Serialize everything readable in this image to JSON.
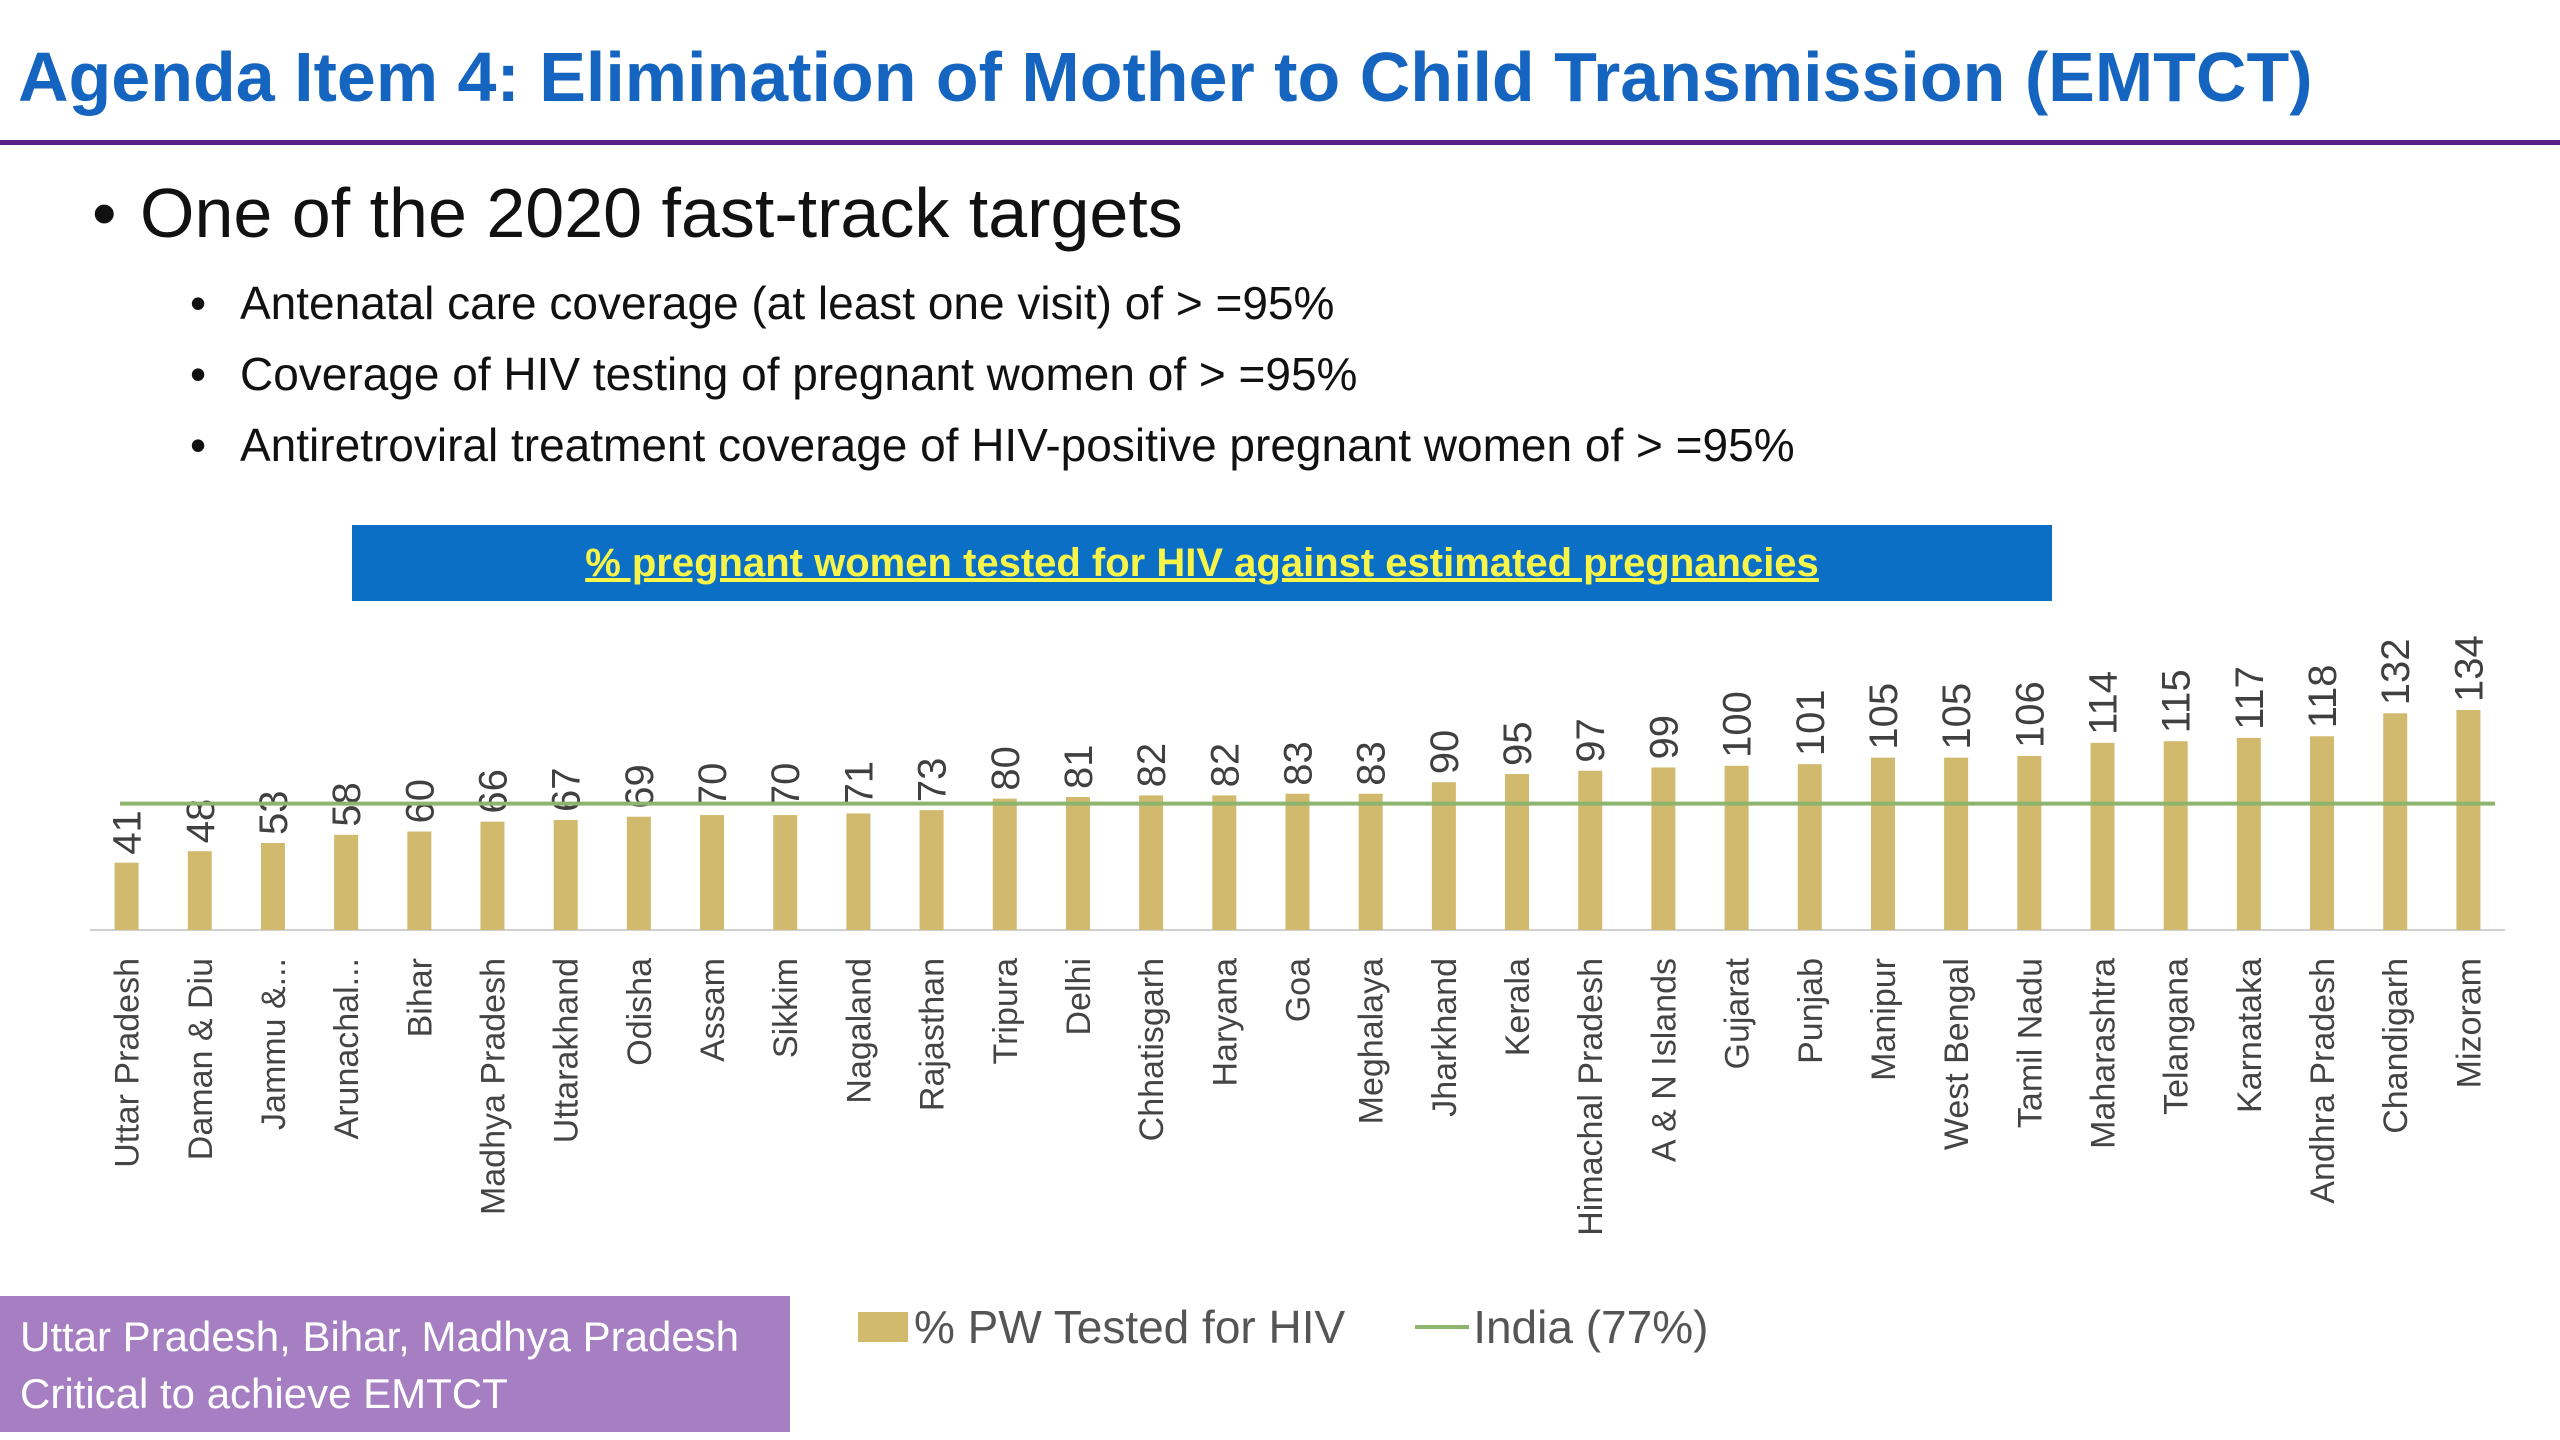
{
  "slide": {
    "title": "Agenda Item 4: Elimination of Mother to Child Transmission (EMTCT)",
    "bullet_main": "One of the 2020 fast-track targets",
    "sub_bullets": [
      "Antenatal care coverage (at least one visit) of > =95%",
      "Coverage of HIV testing of pregnant women of > =95%",
      "Antiretroviral treatment coverage of HIV-positive pregnant women of > =95%"
    ],
    "callout": {
      "line1": "Uttar Pradesh, Bihar, Madhya Pradesh",
      "line2": "Critical to achieve EMTCT"
    }
  },
  "colors": {
    "title": "#1565c0",
    "rule": "#5b1e86",
    "banner": "#0b6fc5",
    "banner_text": "#f7f54a",
    "bar": "#d1ba6d",
    "india_line": "#8db56e",
    "callout": "#a67fc3"
  },
  "chart_data": {
    "type": "bar",
    "title": "% pregnant women tested for HIV against estimated pregnancies",
    "categories": [
      "Uttar Pradesh",
      "Daman & Diu",
      "Jammu &...",
      "Arunachal...",
      "Bihar",
      "Madhya Pradesh",
      "Uttarakhand",
      "Odisha",
      "Assam",
      "Sikkim",
      "Nagaland",
      "Rajasthan",
      "Tripura",
      "Delhi",
      "Chhatisgarh",
      "Haryana",
      "Goa",
      "Meghalaya",
      "Jharkhand",
      "Kerala",
      "Himachal Pradesh",
      "A & N Islands",
      "Gujarat",
      "Punjab",
      "Manipur",
      "West Bengal",
      "Tamil Nadu",
      "Maharashtra",
      "Telangana",
      "Karnataka",
      "Andhra Pradesh",
      "Chandigarh",
      "Mizoram"
    ],
    "series": [
      {
        "name": "% PW Tested for HIV",
        "values": [
          41,
          48,
          53,
          58,
          60,
          66,
          67,
          69,
          70,
          70,
          71,
          73,
          80,
          81,
          82,
          82,
          83,
          83,
          90,
          95,
          97,
          99,
          100,
          101,
          105,
          105,
          106,
          114,
          115,
          117,
          118,
          132,
          134
        ]
      }
    ],
    "reference_line": {
      "name": "India (77%)",
      "value": 77
    },
    "ylim": [
      0,
      134
    ],
    "data_labels": true,
    "legend_position": "bottom",
    "grid": false
  }
}
